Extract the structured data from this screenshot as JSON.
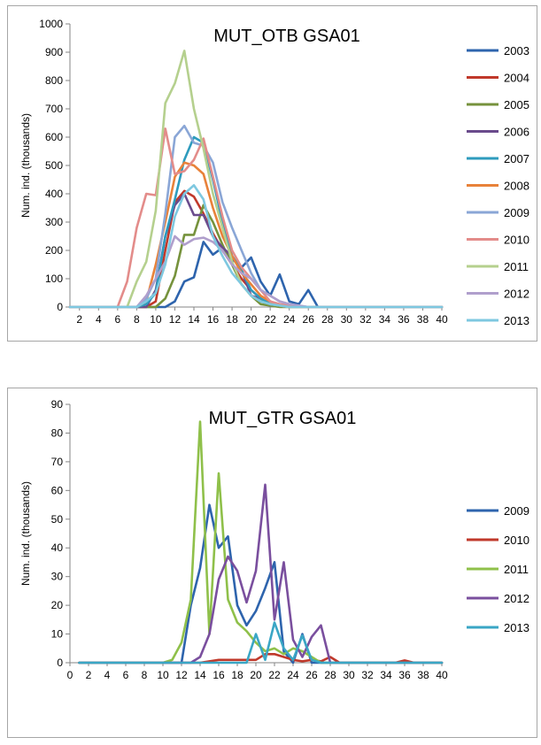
{
  "chart_data": [
    {
      "type": "line",
      "title": "MUT_OTB GSA01",
      "xlabel": "",
      "ylabel": "Num. ind. (thousands)",
      "ylim": [
        0,
        1000
      ],
      "yticks": [
        0,
        100,
        200,
        300,
        400,
        500,
        600,
        700,
        800,
        900,
        1000
      ],
      "xlim": [
        1,
        40
      ],
      "xticks": [
        2,
        4,
        6,
        8,
        10,
        12,
        14,
        16,
        18,
        20,
        22,
        24,
        26,
        28,
        30,
        32,
        34,
        36,
        38,
        40
      ],
      "legend": "right",
      "grid": false,
      "x": [
        1,
        2,
        3,
        4,
        5,
        6,
        7,
        8,
        9,
        10,
        11,
        12,
        13,
        14,
        15,
        16,
        17,
        18,
        19,
        20,
        21,
        22,
        23,
        24,
        25,
        26,
        27,
        28,
        29,
        30,
        31,
        32,
        33,
        34,
        35,
        36,
        37,
        38,
        39,
        40
      ],
      "series": [
        {
          "name": "2003",
          "color": "#2e64ad",
          "values": [
            0,
            0,
            0,
            0,
            0,
            0,
            0,
            0,
            0,
            0,
            0,
            20,
            90,
            105,
            230,
            185,
            210,
            170,
            140,
            175,
            90,
            40,
            115,
            20,
            10,
            60,
            0,
            0,
            0,
            0,
            0,
            0,
            0,
            0,
            0,
            0,
            0,
            0,
            0,
            0
          ]
        },
        {
          "name": "2004",
          "color": "#c0392b",
          "values": [
            0,
            0,
            0,
            0,
            0,
            0,
            0,
            0,
            0,
            20,
            200,
            370,
            410,
            390,
            330,
            260,
            200,
            150,
            100,
            60,
            30,
            10,
            5,
            0,
            0,
            0,
            0,
            0,
            0,
            0,
            0,
            0,
            0,
            0,
            0,
            0,
            0,
            0,
            0,
            0
          ]
        },
        {
          "name": "2005",
          "color": "#76923c",
          "values": [
            0,
            0,
            0,
            0,
            0,
            0,
            0,
            0,
            0,
            0,
            30,
            110,
            255,
            255,
            360,
            300,
            220,
            150,
            80,
            40,
            10,
            5,
            0,
            0,
            0,
            0,
            0,
            0,
            0,
            0,
            0,
            0,
            0,
            0,
            0,
            0,
            0,
            0,
            0,
            0
          ]
        },
        {
          "name": "2006",
          "color": "#6a4b8c",
          "values": [
            0,
            0,
            0,
            0,
            0,
            0,
            0,
            0,
            0,
            60,
            250,
            360,
            400,
            325,
            325,
            250,
            210,
            180,
            130,
            40,
            30,
            10,
            5,
            0,
            0,
            0,
            0,
            0,
            0,
            0,
            0,
            0,
            0,
            0,
            0,
            0,
            0,
            0,
            0,
            0
          ]
        },
        {
          "name": "2007",
          "color": "#2e9bbd",
          "values": [
            0,
            0,
            0,
            0,
            0,
            0,
            0,
            0,
            10,
            50,
            250,
            380,
            520,
            600,
            580,
            450,
            300,
            180,
            130,
            60,
            30,
            10,
            5,
            0,
            0,
            0,
            0,
            0,
            0,
            0,
            0,
            0,
            0,
            0,
            0,
            0,
            0,
            0,
            0,
            0
          ]
        },
        {
          "name": "2008",
          "color": "#e8823a",
          "values": [
            0,
            0,
            0,
            0,
            0,
            0,
            0,
            0,
            20,
            150,
            300,
            460,
            510,
            500,
            470,
            350,
            250,
            180,
            120,
            80,
            40,
            20,
            5,
            0,
            0,
            0,
            0,
            0,
            0,
            0,
            0,
            0,
            0,
            0,
            0,
            0,
            0,
            0,
            0,
            0
          ]
        },
        {
          "name": "2009",
          "color": "#8aa6d6",
          "values": [
            0,
            0,
            0,
            0,
            0,
            0,
            0,
            0,
            30,
            100,
            330,
            600,
            640,
            580,
            570,
            510,
            370,
            280,
            200,
            120,
            60,
            40,
            20,
            10,
            5,
            0,
            0,
            0,
            0,
            0,
            0,
            0,
            0,
            0,
            0,
            0,
            0,
            0,
            0,
            0
          ]
        },
        {
          "name": "2010",
          "color": "#e38c8a",
          "values": [
            0,
            0,
            0,
            0,
            0,
            0,
            90,
            280,
            400,
            395,
            630,
            470,
            480,
            520,
            595,
            460,
            320,
            200,
            140,
            100,
            60,
            20,
            10,
            5,
            0,
            0,
            0,
            0,
            0,
            0,
            0,
            0,
            0,
            0,
            0,
            0,
            0,
            0,
            0,
            0
          ]
        },
        {
          "name": "2011",
          "color": "#b5d08e",
          "values": [
            0,
            0,
            0,
            0,
            0,
            0,
            0,
            90,
            160,
            340,
            720,
            790,
            905,
            700,
            560,
            400,
            280,
            160,
            80,
            40,
            20,
            10,
            5,
            0,
            0,
            0,
            0,
            0,
            0,
            0,
            0,
            0,
            0,
            0,
            0,
            0,
            0,
            0,
            0,
            0
          ]
        },
        {
          "name": "2012",
          "color": "#b09fcc",
          "values": [
            0,
            0,
            0,
            0,
            0,
            0,
            0,
            0,
            40,
            100,
            160,
            250,
            220,
            240,
            245,
            230,
            200,
            150,
            120,
            100,
            60,
            40,
            20,
            10,
            5,
            0,
            0,
            0,
            0,
            0,
            0,
            0,
            0,
            0,
            0,
            0,
            0,
            0,
            0,
            0
          ]
        },
        {
          "name": "2013",
          "color": "#7ec8e0",
          "values": [
            0,
            0,
            0,
            0,
            0,
            0,
            0,
            0,
            20,
            50,
            150,
            320,
            400,
            430,
            380,
            250,
            180,
            120,
            80,
            40,
            20,
            10,
            5,
            0,
            0,
            0,
            0,
            0,
            0,
            0,
            0,
            0,
            0,
            0,
            0,
            0,
            0,
            0,
            0,
            0
          ]
        }
      ]
    },
    {
      "type": "line",
      "title": "MUT_GTR GSA01",
      "xlabel": "",
      "ylabel": "Num. ind. (thousands)",
      "ylim": [
        0,
        90
      ],
      "yticks": [
        0,
        10,
        20,
        30,
        40,
        50,
        60,
        70,
        80,
        90
      ],
      "xlim": [
        0,
        40
      ],
      "xticks": [
        0,
        2,
        4,
        6,
        8,
        10,
        12,
        14,
        16,
        18,
        20,
        22,
        24,
        26,
        28,
        30,
        32,
        34,
        36,
        38,
        40
      ],
      "legend": "right",
      "grid": false,
      "x": [
        1,
        2,
        3,
        4,
        5,
        6,
        7,
        8,
        9,
        10,
        11,
        12,
        13,
        14,
        15,
        16,
        17,
        18,
        19,
        20,
        21,
        22,
        23,
        24,
        25,
        26,
        27,
        28,
        29,
        30,
        31,
        32,
        33,
        34,
        35,
        36,
        37,
        38,
        39,
        40
      ],
      "series": [
        {
          "name": "2009",
          "color": "#2e64ad",
          "values": [
            0,
            0,
            0,
            0,
            0,
            0,
            0,
            0,
            0,
            0,
            0,
            0,
            20,
            33,
            55,
            40,
            44,
            20,
            13,
            18,
            26,
            35,
            4,
            0,
            10,
            0,
            0,
            0,
            0,
            0,
            0,
            0,
            0,
            0,
            0,
            0,
            0,
            0,
            0,
            0
          ]
        },
        {
          "name": "2010",
          "color": "#c0392b",
          "values": [
            0,
            0,
            0,
            0,
            0,
            0,
            0,
            0,
            0,
            0,
            0,
            0,
            0,
            0,
            0.5,
            1,
            1,
            1,
            1,
            1,
            3,
            3,
            2,
            1,
            0.5,
            1,
            0.5,
            2,
            0,
            0,
            0,
            0,
            0,
            0,
            0,
            0.8,
            0,
            0,
            0,
            0
          ]
        },
        {
          "name": "2011",
          "color": "#8fc04a",
          "values": [
            0,
            0,
            0,
            0,
            0,
            0,
            0,
            0,
            0,
            0,
            1,
            7,
            22,
            84,
            10,
            66,
            22,
            14,
            11,
            7,
            4,
            5,
            3,
            5,
            4,
            2,
            0,
            0,
            0,
            0,
            0,
            0,
            0,
            0,
            0,
            0,
            0,
            0,
            0,
            0
          ]
        },
        {
          "name": "2012",
          "color": "#7a4f9e",
          "values": [
            0,
            0,
            0,
            0,
            0,
            0,
            0,
            0,
            0,
            0,
            0,
            0,
            0,
            2,
            10,
            29,
            37,
            32,
            21,
            32,
            62,
            15,
            35,
            8,
            2,
            9,
            13,
            0,
            0,
            0,
            0,
            0,
            0,
            0,
            0,
            0,
            0,
            0,
            0,
            0
          ]
        },
        {
          "name": "2013",
          "color": "#3aa6c5",
          "values": [
            0,
            0,
            0,
            0,
            0,
            0,
            0,
            0,
            0,
            0,
            0,
            0,
            0,
            0,
            0,
            0,
            0,
            0,
            0,
            10,
            1,
            14,
            5,
            1,
            9.5,
            1,
            0,
            0,
            0,
            0,
            0,
            0,
            0,
            0,
            0,
            0,
            0,
            0,
            0,
            0
          ]
        }
      ]
    }
  ]
}
